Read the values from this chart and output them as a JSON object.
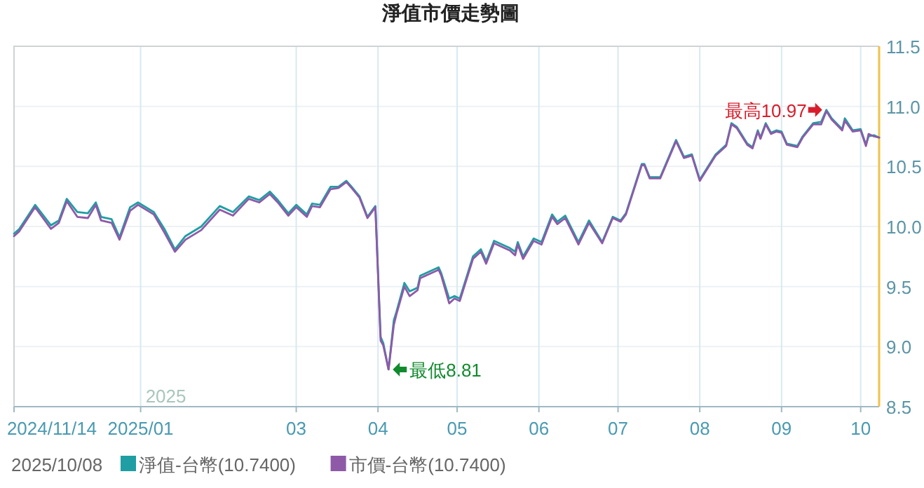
{
  "chart_data": {
    "type": "line",
    "title": "淨值市價走勢圖",
    "legend_title": "2025/10/08",
    "legend": "bottom",
    "grid": true,
    "marker": "none",
    "line_style": "solid",
    "x": [
      "2024-11-14",
      "2024-11-16",
      "2024-11-22",
      "2024-11-28",
      "2024-12-01",
      "2024-12-04",
      "2024-12-08",
      "2024-12-12",
      "2024-12-15",
      "2024-12-17",
      "2024-12-21",
      "2024-12-24",
      "2024-12-28",
      "2024-12-31",
      "2025-01-06",
      "2025-01-10",
      "2025-01-14",
      "2025-01-18",
      "2025-01-24",
      "2025-01-31",
      "2025-02-05",
      "2025-02-11",
      "2025-02-15",
      "2025-02-19",
      "2025-02-22",
      "2025-02-26",
      "2025-03-01",
      "2025-03-05",
      "2025-03-07",
      "2025-03-10",
      "2025-03-14",
      "2025-03-17",
      "2025-03-20",
      "2025-03-22",
      "2025-03-25",
      "2025-03-28",
      "2025-03-31",
      "2025-04-02",
      "2025-04-03",
      "2025-04-05",
      "2025-04-07",
      "2025-04-08",
      "2025-04-11",
      "2025-04-13",
      "2025-04-16",
      "2025-04-17",
      "2025-04-24",
      "2025-04-25",
      "2025-04-28",
      "2025-04-30",
      "2025-05-02",
      "2025-05-07",
      "2025-05-10",
      "2025-05-12",
      "2025-05-15",
      "2025-05-21",
      "2025-05-23",
      "2025-05-24",
      "2025-05-26",
      "2025-05-30",
      "2025-06-02",
      "2025-06-06",
      "2025-06-08",
      "2025-06-11",
      "2025-06-16",
      "2025-06-20",
      "2025-06-25",
      "2025-06-29",
      "2025-07-02",
      "2025-07-04",
      "2025-07-10",
      "2025-07-11",
      "2025-07-13",
      "2025-07-17",
      "2025-07-23",
      "2025-07-26",
      "2025-07-29",
      "2025-08-01",
      "2025-08-07",
      "2025-08-11",
      "2025-08-13",
      "2025-08-15",
      "2025-08-19",
      "2025-08-21",
      "2025-08-23",
      "2025-08-24",
      "2025-08-26",
      "2025-08-28",
      "2025-08-30",
      "2025-09-01",
      "2025-09-03",
      "2025-09-07",
      "2025-09-09",
      "2025-09-13",
      "2025-09-16",
      "2025-09-18",
      "2025-09-20",
      "2025-09-24",
      "2025-09-25",
      "2025-09-28",
      "2025-10-01",
      "2025-10-03",
      "2025-10-04",
      "2025-10-06",
      "2025-10-08"
    ],
    "series": [
      {
        "name": "淨值-台幣(10.7400)",
        "color": "#1f9ea3",
        "values": [
          9.94,
          9.98,
          10.18,
          10.01,
          10.05,
          10.23,
          10.12,
          10.11,
          10.2,
          10.08,
          10.06,
          9.91,
          10.16,
          10.2,
          10.12,
          9.98,
          9.81,
          9.92,
          10.0,
          10.17,
          10.12,
          10.25,
          10.22,
          10.29,
          10.22,
          10.11,
          10.18,
          10.1,
          10.19,
          10.18,
          10.33,
          10.33,
          10.38,
          10.33,
          10.25,
          10.08,
          10.17,
          9.08,
          9.03,
          8.81,
          9.22,
          9.29,
          9.53,
          9.46,
          9.49,
          9.59,
          9.66,
          9.61,
          9.4,
          9.42,
          9.4,
          9.75,
          9.81,
          9.71,
          9.88,
          9.82,
          9.79,
          9.87,
          9.75,
          9.9,
          9.87,
          10.1,
          10.04,
          10.09,
          9.87,
          10.05,
          9.87,
          10.08,
          10.05,
          10.11,
          10.52,
          10.52,
          10.41,
          10.41,
          10.72,
          10.58,
          10.6,
          10.39,
          10.6,
          10.68,
          10.86,
          10.83,
          10.69,
          10.66,
          10.8,
          10.74,
          10.86,
          10.78,
          10.8,
          10.79,
          10.69,
          10.67,
          10.75,
          10.86,
          10.87,
          10.97,
          10.9,
          10.81,
          10.9,
          10.8,
          10.81,
          10.68,
          10.75,
          10.76,
          10.74
        ]
      },
      {
        "name": "市價-台幣(10.7400)",
        "color": "#8e5aa8",
        "values": [
          9.92,
          9.96,
          10.16,
          9.98,
          10.03,
          10.21,
          10.08,
          10.07,
          10.18,
          10.05,
          10.03,
          9.89,
          10.13,
          10.18,
          10.1,
          9.95,
          9.79,
          9.89,
          9.97,
          10.14,
          10.09,
          10.23,
          10.2,
          10.27,
          10.2,
          10.09,
          10.16,
          10.08,
          10.17,
          10.16,
          10.31,
          10.32,
          10.37,
          10.32,
          10.24,
          10.07,
          10.16,
          9.05,
          9.01,
          8.81,
          9.18,
          9.27,
          9.5,
          9.42,
          9.47,
          9.57,
          9.64,
          9.59,
          9.36,
          9.4,
          9.38,
          9.73,
          9.79,
          9.69,
          9.86,
          9.8,
          9.76,
          9.85,
          9.73,
          9.88,
          9.85,
          10.08,
          10.02,
          10.07,
          9.85,
          10.03,
          9.86,
          10.07,
          10.04,
          10.1,
          10.51,
          10.51,
          10.4,
          10.4,
          10.71,
          10.57,
          10.59,
          10.38,
          10.59,
          10.67,
          10.85,
          10.82,
          10.68,
          10.65,
          10.79,
          10.73,
          10.85,
          10.77,
          10.79,
          10.78,
          10.68,
          10.66,
          10.74,
          10.85,
          10.85,
          10.96,
          10.89,
          10.8,
          10.88,
          10.79,
          10.8,
          10.67,
          10.77,
          10.75,
          10.74
        ]
      }
    ],
    "xlim": [
      "2024-11-14",
      "2025-10-08"
    ],
    "xticks": [
      {
        "value": "2024-11-14",
        "label": "2024/11/14"
      },
      {
        "value": "2025-01-01",
        "label": "2025/01"
      },
      {
        "value": "2025-03-01",
        "label": "03"
      },
      {
        "value": "2025-04-01",
        "label": "04"
      },
      {
        "value": "2025-05-01",
        "label": "05"
      },
      {
        "value": "2025-06-01",
        "label": "06"
      },
      {
        "value": "2025-07-01",
        "label": "07"
      },
      {
        "value": "2025-08-01",
        "label": "08"
      },
      {
        "value": "2025-09-01",
        "label": "09"
      },
      {
        "value": "2025-10-01",
        "label": "10"
      }
    ],
    "ylim": [
      8.5,
      11.5
    ],
    "yticks": [
      8.5,
      {
        "value": 9,
        "label": "9.0"
      },
      9.5,
      {
        "value": 10,
        "label": "10.0"
      },
      10.5,
      {
        "value": 11,
        "label": "11.0"
      },
      11.5
    ],
    "annotations": [
      "2025",
      {
        "text": "最低8.81",
        "x": "2025-04-05",
        "y": 8.81
      },
      {
        "text": "最高10.97",
        "x": "2025-09-18",
        "y": 10.97
      }
    ]
  }
}
